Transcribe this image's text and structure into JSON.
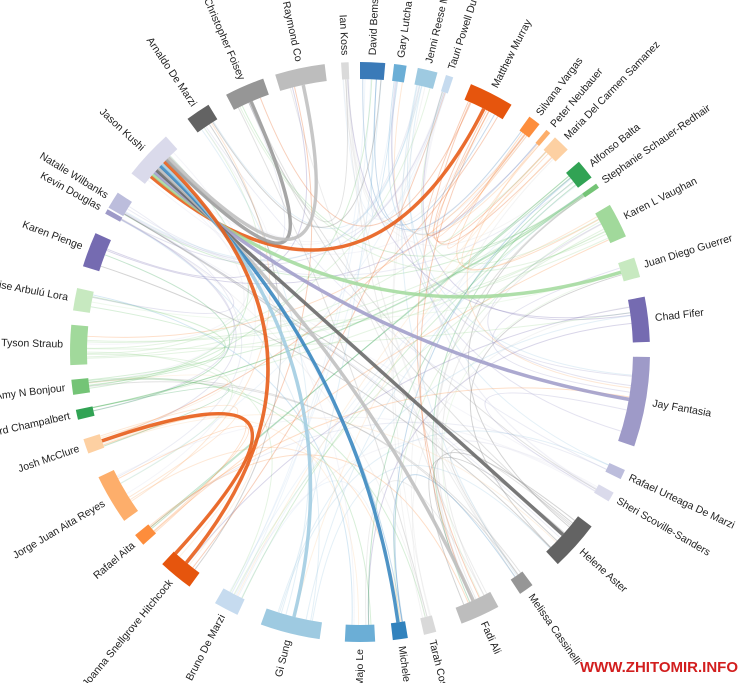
{
  "nodes": [
    {
      "label": "Ian Koss",
      "color": "#dadada"
    },
    {
      "label": "David Bems",
      "color": "#3a7ab8"
    },
    {
      "label": "Gary Lutcha",
      "color": "#6baed6"
    },
    {
      "label": "Jenni Reese M",
      "color": "#9ecae1"
    },
    {
      "label": "Tauri Powell Du",
      "color": "#c6dbef"
    },
    {
      "label": "Matthew Murray",
      "color": "#e6550d"
    },
    {
      "label": "Silvana Vargas",
      "color": "#fd8d3c"
    },
    {
      "label": "Peter Neubauer",
      "color": "#fdae6b"
    },
    {
      "label": "Maria Del Carmen Samanez",
      "color": "#fdd0a2"
    },
    {
      "label": "Alfonso Balta",
      "color": "#31a354"
    },
    {
      "label": "Stephanie Schauer-Redhair",
      "color": "#74c476"
    },
    {
      "label": "Karen L Vaughan",
      "color": "#a1d99b"
    },
    {
      "label": "Juan Diego Guerrer",
      "color": "#c7e9c0"
    },
    {
      "label": "Chad Fifer",
      "color": "#756bb1"
    },
    {
      "label": "Jay Fantasia",
      "color": "#9e9ac8"
    },
    {
      "label": "Rafael Urteaga De Marzi",
      "color": "#bcbddc"
    },
    {
      "label": "Sheri Scoville-Sanders",
      "color": "#dadaeb"
    },
    {
      "label": "Helene Aster",
      "color": "#636363"
    },
    {
      "label": "Melissa Cassinelli",
      "color": "#969696"
    },
    {
      "label": "Fadi Ali",
      "color": "#bdbdbd"
    },
    {
      "label": "Tarah Cos",
      "color": "#d9d9d9"
    },
    {
      "label": "Michele L",
      "color": "#3182bd"
    },
    {
      "label": "Majo Le",
      "color": "#6baed6"
    },
    {
      "label": "Gi Sung",
      "color": "#9ecae1"
    },
    {
      "label": "Bruno De Marzi",
      "color": "#c6dbef"
    },
    {
      "label": "Joanna Snellgrove Hitchcock",
      "color": "#e6550d"
    },
    {
      "label": "Rafael Aita",
      "color": "#fd8d3c"
    },
    {
      "label": "Jorge Juan Aita Reyes",
      "color": "#fdae6b"
    },
    {
      "label": "Josh McClure",
      "color": "#fdd0a2"
    },
    {
      "label": "rard Champalbert",
      "color": "#31a354"
    },
    {
      "label": "Amy N Bonjour",
      "color": "#74c476"
    },
    {
      "label": "Tyson Straub",
      "color": "#a1d99b"
    },
    {
      "label": "ise Arbulú Lora",
      "color": "#c7e9c0"
    },
    {
      "label": "Karen Pienge",
      "color": "#756bb1"
    },
    {
      "label": "Kevin Douglas",
      "color": "#9e9ac8"
    },
    {
      "label": "Natalie Wilbanks",
      "color": "#bcbddc"
    },
    {
      "label": "Jason Kushi",
      "color": "#dadaeb"
    },
    {
      "label": "Arnaldo De Marzi",
      "color": "#636363"
    },
    {
      "label": "Christopher Foisey",
      "color": "#969696"
    },
    {
      "label": "Raymond Co",
      "color": "#bdbdbd"
    }
  ],
  "watermark": "WWW.ZHITOMIR.INFO"
}
